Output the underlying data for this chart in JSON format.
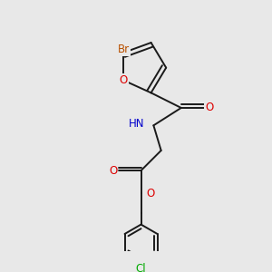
{
  "bg_color": "#e8e8e8",
  "bond_color": "#1a1a1a",
  "atom_colors": {
    "Br": "#b85000",
    "O": "#dd0000",
    "N": "#0000cc",
    "Cl": "#00aa00",
    "C": "#1a1a1a",
    "H": "#606060"
  },
  "lw": 1.4,
  "fs": 8.5,
  "fig_size": [
    3.0,
    3.0
  ],
  "dpi": 100
}
